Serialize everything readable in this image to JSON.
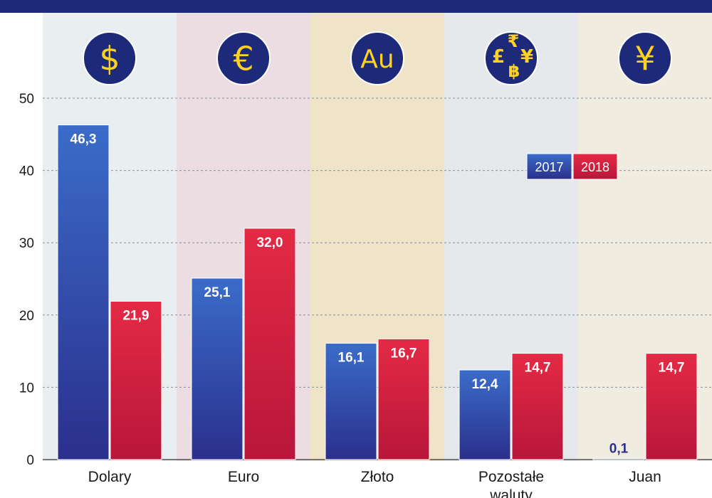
{
  "chart_data": {
    "type": "bar",
    "categories": [
      "Dolary",
      "Euro",
      "Złoto",
      "Pozostałe waluty",
      "Juan"
    ],
    "category_icons": [
      {
        "name": "dollar-icon",
        "glyph": "$"
      },
      {
        "name": "euro-icon",
        "glyph": "€"
      },
      {
        "name": "gold-icon",
        "glyph": "Au"
      },
      {
        "name": "other-currencies-icon",
        "glyph": "₹ £ ฿ ¥"
      },
      {
        "name": "yuan-icon",
        "glyph": "¥"
      }
    ],
    "series": [
      {
        "name": "2017",
        "values": [
          46.3,
          25.1,
          16.1,
          12.4,
          0.1
        ],
        "labels": [
          "46,3",
          "25,1",
          "16,1",
          "12,4",
          "0,1"
        ],
        "color": "#2f4fa6"
      },
      {
        "name": "2018",
        "values": [
          21.9,
          32.0,
          16.7,
          14.7,
          14.7
        ],
        "labels": [
          "21,9",
          "32,0",
          "16,7",
          "14,7",
          "14,7"
        ],
        "color": "#dc2340"
      }
    ],
    "yticks": [
      0,
      10,
      20,
      30,
      40,
      50
    ],
    "ylim": [
      0,
      50
    ],
    "grid": true,
    "legend_position": "top-right",
    "colors": {
      "banner": "#1d2a7a",
      "icon_fill": "#1d2a7a",
      "icon_glyph": "#ffd21f"
    }
  }
}
